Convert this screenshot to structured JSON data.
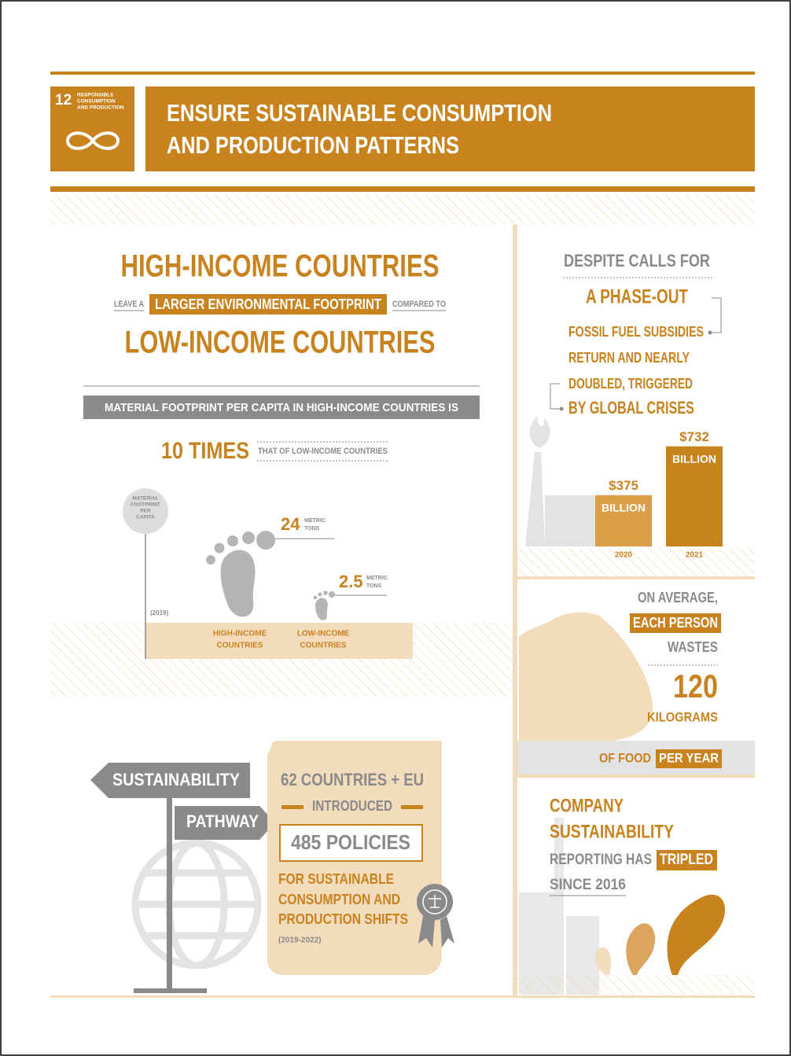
{
  "header": {
    "goal_number": 12,
    "goal_name_lines": [
      "RESPONSIBLE",
      "CONSUMPTION",
      "AND PRODUCTION"
    ],
    "title_lines": [
      "ENSURE SUSTAINABLE CONSUMPTION",
      "AND PRODUCTION PATTERNS"
    ]
  },
  "footprint": {
    "headline_top": "HIGH-INCOME COUNTRIES",
    "pre": "LEAVE A",
    "highlight": "LARGER ENVIRONMENTAL FOOTPRINT",
    "post": "COMPARED TO",
    "headline_bottom": "LOW-INCOME COUNTRIES",
    "banner": "MATERIAL FOOTPRINT PER CAPITA IN HIGH-INCOME COUNTRIES IS",
    "multiple": "10 TIMES",
    "multiple_note": "THAT OF LOW-INCOME COUNTRIES",
    "axis_label_lines": [
      "MATERIAL",
      "FOOTPRINT",
      "PER",
      "CAPITA"
    ],
    "year": "(2019)",
    "groups": [
      {
        "value": 24,
        "unit_lines": [
          "METRIC",
          "TONS"
        ],
        "label_lines": [
          "HIGH-INCOME",
          "COUNTRIES"
        ]
      },
      {
        "value": 2.5,
        "unit_lines": [
          "METRIC",
          "TONS"
        ],
        "label_lines": [
          "LOW-INCOME",
          "COUNTRIES"
        ]
      }
    ]
  },
  "subsidies": {
    "lead": "DESPITE CALLS FOR",
    "phase_out": "A PHASE-OUT",
    "body_lines": [
      "FOSSIL FUEL SUBSIDIES",
      "RETURN AND NEARLY",
      "DOUBLED, TRIGGERED",
      "BY GLOBAL CRISES"
    ],
    "years": [
      "2020",
      "2021"
    ],
    "values": [
      375,
      732
    ],
    "value_labels": [
      "$375",
      "$732"
    ],
    "units": [
      "BILLION",
      "BILLION"
    ]
  },
  "food_waste": {
    "line1": "ON AVERAGE,",
    "highlight": "EACH PERSON",
    "line3": "WASTES",
    "amount": 120,
    "unit": "KILOGRAMS",
    "of_food": "OF FOOD",
    "per_year": "PER YEAR"
  },
  "policies": {
    "sign_top": "SUSTAINABILITY",
    "sign_bottom": "PATHWAY",
    "countries": "62 COUNTRIES + EU",
    "introduced": "INTRODUCED",
    "count": "485 POLICIES",
    "purpose_lines": [
      "FOR SUSTAINABLE",
      "CONSUMPTION AND",
      "PRODUCTION SHIFTS"
    ],
    "period": "(2019-2022)"
  },
  "reporting": {
    "lines": [
      "COMPANY",
      "SUSTAINABILITY"
    ],
    "pre": "REPORTING HAS",
    "highlight": "TRIPLED",
    "since": "SINCE 2016"
  }
}
